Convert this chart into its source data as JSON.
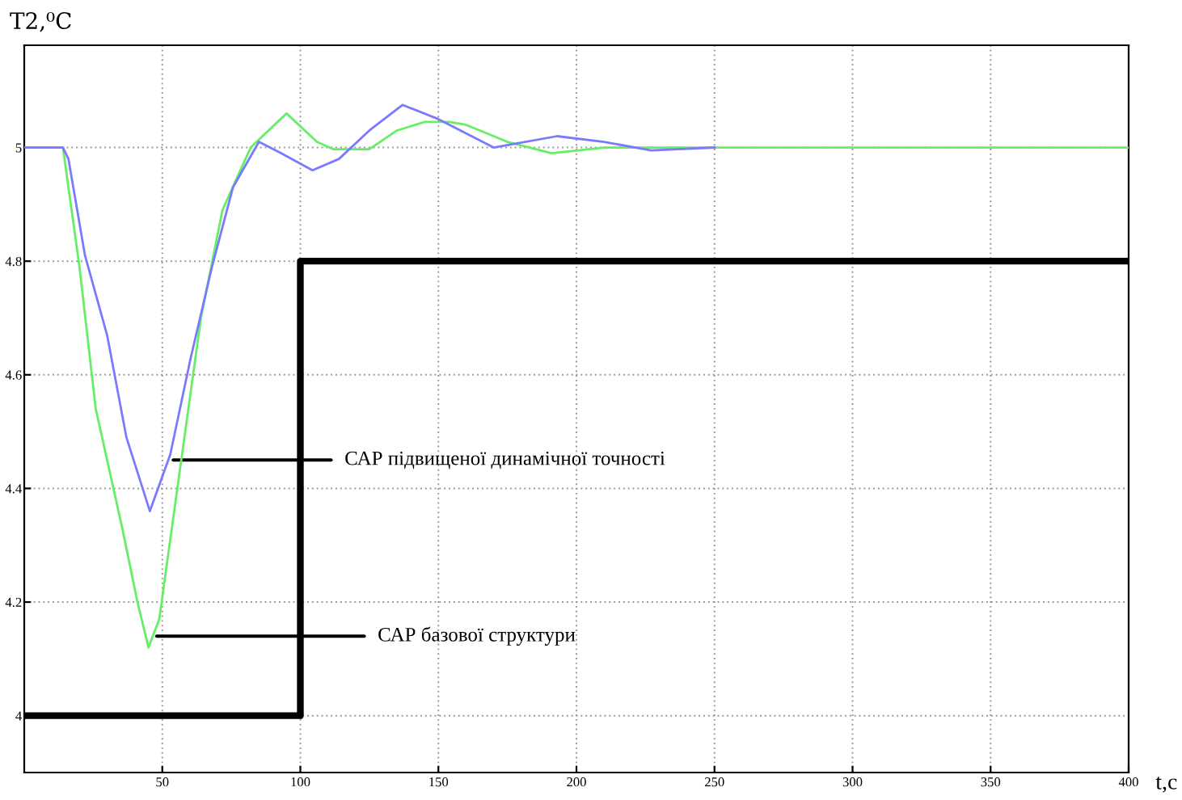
{
  "chart_data": {
    "type": "line",
    "ylabel": "T2,⁰C",
    "xlabel": "t,c",
    "xlim": [
      0,
      400
    ],
    "ylim": [
      3.9,
      5.18
    ],
    "xticks": [
      50,
      100,
      150,
      200,
      250,
      300,
      350,
      400
    ],
    "yticks": [
      4,
      4.2,
      4.4,
      4.6,
      4.8,
      5
    ],
    "grid": true,
    "series": [
      {
        "color": "#000000",
        "type": "step",
        "x": [
          0,
          100,
          400
        ],
        "values": [
          4,
          4.8,
          4.8
        ]
      },
      {
        "color": "#7a7aff",
        "x": [
          0,
          14,
          16,
          22,
          30,
          37,
          45.5,
          52.9,
          60.3,
          68,
          75.6,
          85,
          93,
          104.4,
          114,
          125,
          137,
          150,
          170,
          193,
          210,
          227,
          250
        ],
        "values": [
          5,
          5,
          4.98,
          4.81,
          4.67,
          4.49,
          4.36,
          4.46,
          4.63,
          4.79,
          4.93,
          5.01,
          4.99,
          4.96,
          4.98,
          5.03,
          5.075,
          5.05,
          5.0,
          5.02,
          5.01,
          4.995,
          5.0
        ]
      },
      {
        "color": "#66ee66",
        "x": [
          0,
          14,
          20,
          25.9,
          35.5,
          41,
          45,
          48.9,
          56.3,
          64,
          71.8,
          82,
          95,
          106,
          112,
          125,
          135,
          145,
          154,
          160,
          175,
          191,
          210,
          250,
          300,
          350,
          400
        ],
        "values": [
          5,
          5,
          4.79,
          4.54,
          4.33,
          4.2,
          4.12,
          4.17,
          4.43,
          4.7,
          4.89,
          5.0,
          5.06,
          5.01,
          4.997,
          4.997,
          5.03,
          5.045,
          5.045,
          5.04,
          5.01,
          4.99,
          5.0,
          5.0,
          5.0,
          5.0,
          5.0
        ]
      }
    ],
    "annotations": [
      {
        "text": "САР підвищеної динамічної точності",
        "x": 54,
        "y": 4.45
      },
      {
        "text": "САР базової структури",
        "x": 48,
        "y": 4.14
      }
    ]
  }
}
